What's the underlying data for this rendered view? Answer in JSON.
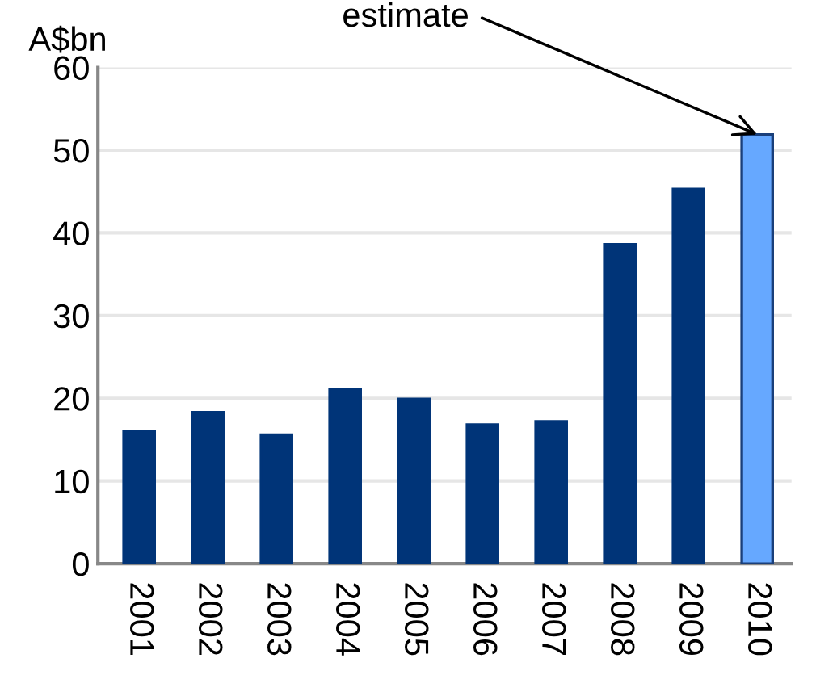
{
  "chart_data": {
    "type": "bar",
    "ylabel": "A$bn",
    "categories": [
      "2001",
      "2002",
      "2003",
      "2004",
      "2005",
      "2006",
      "2007",
      "2008",
      "2009",
      "2010"
    ],
    "values": [
      16.0,
      18.3,
      15.6,
      21.1,
      19.9,
      16.8,
      17.2,
      38.6,
      45.3,
      51.9
    ],
    "colors": [
      "#003478",
      "#003478",
      "#003478",
      "#003478",
      "#003478",
      "#003478",
      "#003478",
      "#003478",
      "#003478",
      "#66a8ff"
    ],
    "ylim": [
      0,
      60
    ],
    "yticks": [
      0,
      10,
      20,
      30,
      40,
      50,
      60
    ],
    "grid": "y",
    "legend": false,
    "annotations": [
      {
        "text": "estimate",
        "x": "2010",
        "y": 51.9
      }
    ]
  }
}
